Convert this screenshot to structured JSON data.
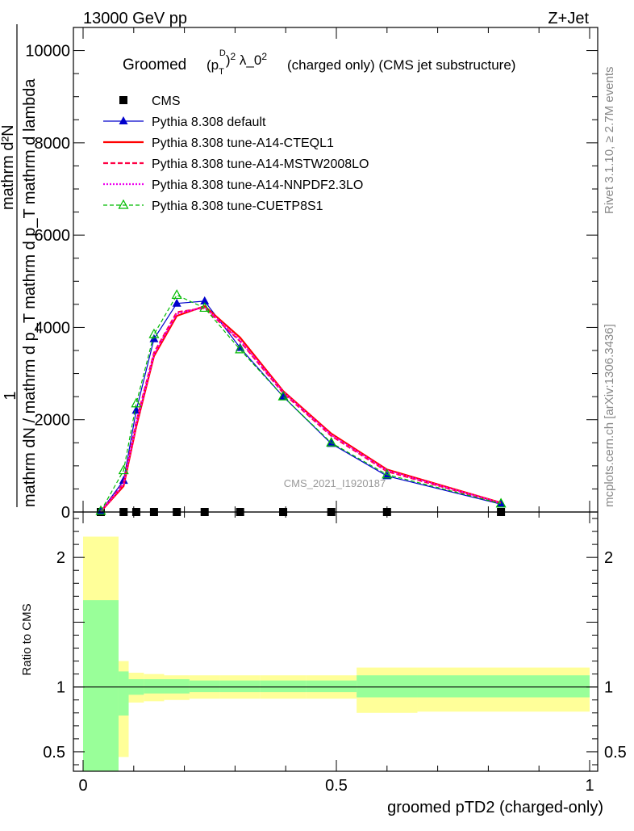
{
  "header": {
    "left": "13000 GeV pp",
    "right": "Z+Jet"
  },
  "side_labels": {
    "rivet": "Rivet 3.1.10, ≥ 2.7M events",
    "mcplots": "mcplots.cern.ch [arXiv:1306.3436]"
  },
  "chart_data": [
    {
      "type": "line",
      "title_prefix": "Groomed",
      "title_suffix": "(charged only) (CMS jet substructure)",
      "watermark": "CMS_2021_I1920187",
      "ylabel_lines": [
        "1",
        "mathrm dN / mathrm d p_T mathrm d p_T mathrm d lambda",
        "mathrm d²N"
      ],
      "xlim": [
        0,
        1
      ],
      "ylim": [
        0,
        10500
      ],
      "yticks": [
        0,
        2000,
        4000,
        6000,
        8000,
        10000
      ],
      "ytick_labels": [
        "0",
        "2000",
        "4000",
        "6000",
        "8000",
        "10000"
      ],
      "legend_position": "top-left",
      "series": [
        {
          "name": "CMS",
          "color": "#000000",
          "style": "marker",
          "marker": "square",
          "x": [
            0.035,
            0.08,
            0.105,
            0.14,
            0.185,
            0.24,
            0.31,
            0.395,
            0.49,
            0.6,
            0.825
          ],
          "y": [
            0,
            0,
            0,
            0,
            0,
            0,
            0,
            0,
            0,
            0,
            0
          ]
        },
        {
          "name": "Pythia 8.308 default",
          "color": "#0000cc",
          "style": "solid",
          "marker": "triangle-filled",
          "x": [
            0.035,
            0.08,
            0.105,
            0.14,
            0.185,
            0.24,
            0.31,
            0.395,
            0.49,
            0.6,
            0.825
          ],
          "y": [
            20,
            680,
            2200,
            3750,
            4520,
            4570,
            3560,
            2500,
            1480,
            780,
            170
          ]
        },
        {
          "name": "Pythia 8.308 tune-A14-CTEQL1",
          "color": "#ff0000",
          "style": "solid",
          "marker": "none",
          "x": [
            0.035,
            0.08,
            0.105,
            0.14,
            0.185,
            0.24,
            0.31,
            0.395,
            0.49,
            0.6,
            0.825
          ],
          "y": [
            10,
            560,
            1850,
            3380,
            4250,
            4460,
            3780,
            2620,
            1700,
            920,
            200
          ]
        },
        {
          "name": "Pythia 8.308 tune-A14-MSTW2008LO",
          "color": "#ff0044",
          "style": "dashed",
          "marker": "none",
          "x": [
            0.035,
            0.08,
            0.105,
            0.14,
            0.185,
            0.24,
            0.31,
            0.395,
            0.49,
            0.6,
            0.825
          ],
          "y": [
            10,
            620,
            1950,
            3450,
            4330,
            4420,
            3700,
            2580,
            1650,
            880,
            190
          ]
        },
        {
          "name": "Pythia 8.308 tune-A14-NNPDF2.3LO",
          "color": "#ee00ee",
          "style": "dotted",
          "marker": "none",
          "x": [
            0.035,
            0.08,
            0.105,
            0.14,
            0.185,
            0.24,
            0.31,
            0.395,
            0.49,
            0.6,
            0.825
          ],
          "y": [
            10,
            600,
            1900,
            3420,
            4300,
            4440,
            3720,
            2600,
            1670,
            900,
            195
          ]
        },
        {
          "name": "Pythia 8.308 tune-CUETP8S1",
          "color": "#00bb00",
          "style": "dashed",
          "marker": "triangle-open",
          "x": [
            0.035,
            0.08,
            0.105,
            0.14,
            0.185,
            0.24,
            0.31,
            0.395,
            0.49,
            0.6,
            0.825
          ],
          "y": [
            20,
            900,
            2350,
            3850,
            4700,
            4420,
            3520,
            2500,
            1500,
            810,
            180
          ]
        }
      ]
    },
    {
      "type": "area",
      "ylabel": "Ratio to CMS",
      "xlabel": "groomed pTD2 (charged-only)",
      "xlim": [
        0,
        1
      ],
      "ylim": [
        0.35,
        2.35
      ],
      "xticks": [
        0,
        0.5,
        1
      ],
      "xtick_labels": [
        "0",
        "0.5",
        "1"
      ],
      "yticks": [
        0.5,
        1,
        2
      ],
      "ytick_labels": [
        "0.5",
        "1",
        "2"
      ],
      "bands": {
        "bin_edges": [
          0,
          0.07,
          0.09,
          0.12,
          0.16,
          0.21,
          0.27,
          0.35,
          0.44,
          0.54,
          0.66,
          1.0
        ],
        "yellow_low": [
          0.35,
          0.46,
          0.88,
          0.89,
          0.9,
          0.91,
          0.91,
          0.91,
          0.91,
          0.8,
          0.81
        ],
        "yellow_high": [
          2.16,
          1.2,
          1.11,
          1.1,
          1.09,
          1.09,
          1.09,
          1.09,
          1.09,
          1.15,
          1.15
        ],
        "green_low": [
          0.35,
          0.78,
          0.94,
          0.95,
          0.95,
          0.96,
          0.96,
          0.96,
          0.96,
          0.92,
          0.92
        ],
        "green_high": [
          1.67,
          1.12,
          1.06,
          1.06,
          1.06,
          1.05,
          1.05,
          1.05,
          1.05,
          1.09,
          1.09
        ],
        "yellow_color": "#ffff99",
        "green_color": "#99ff99"
      }
    }
  ]
}
